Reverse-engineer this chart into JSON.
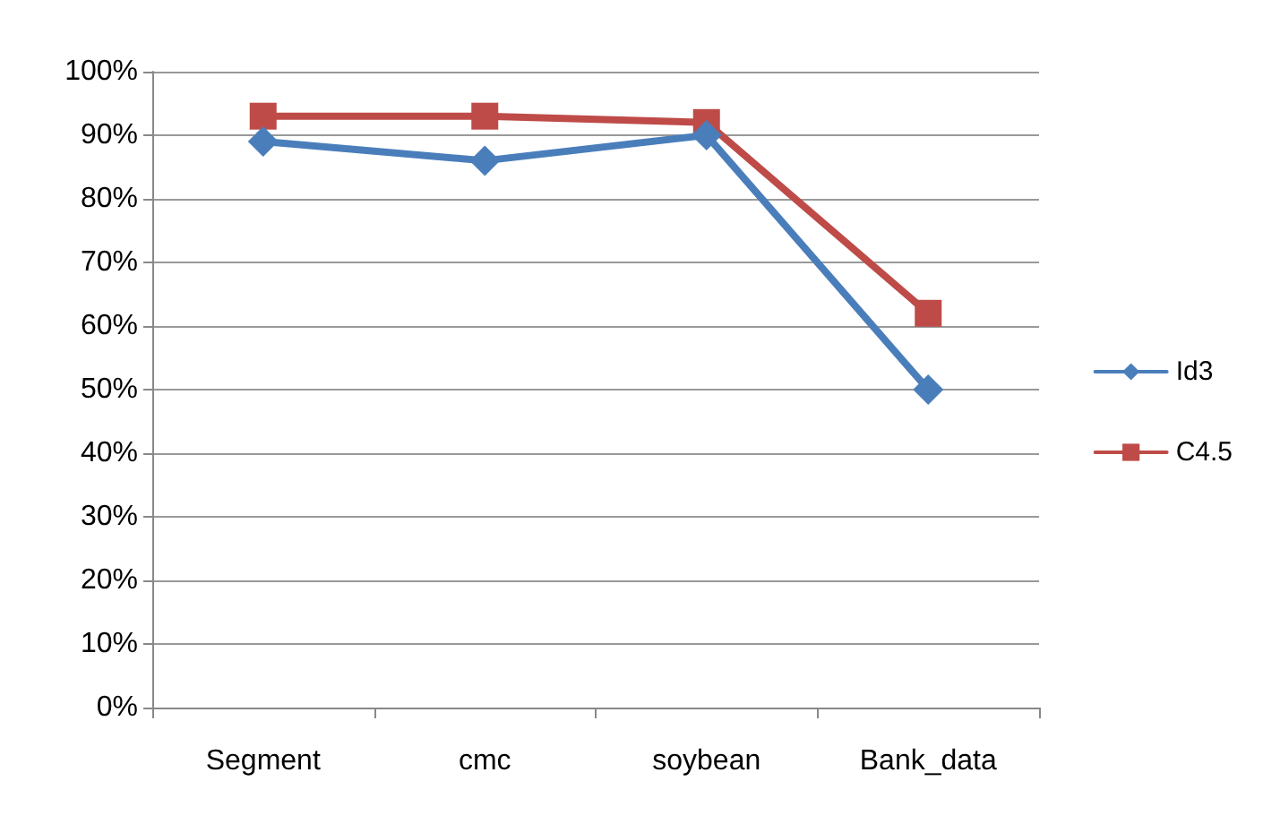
{
  "chart_data": {
    "type": "line",
    "categories": [
      "Segment",
      "cmc",
      "soybean",
      "Bank_data"
    ],
    "series": [
      {
        "name": "Id3",
        "color": "#4a7ebb",
        "marker": "diamond",
        "values": [
          89,
          86,
          90,
          50
        ]
      },
      {
        "name": "C4.5",
        "color": "#be4b48",
        "marker": "square",
        "values": [
          93,
          93,
          92,
          62
        ]
      }
    ],
    "ylim": [
      0,
      100
    ],
    "yticks": [
      {
        "value": 0,
        "label": "0%"
      },
      {
        "value": 10,
        "label": "10%"
      },
      {
        "value": 20,
        "label": "20%"
      },
      {
        "value": 30,
        "label": "30%"
      },
      {
        "value": 40,
        "label": "40%"
      },
      {
        "value": 50,
        "label": "50%"
      },
      {
        "value": 60,
        "label": "60%"
      },
      {
        "value": 70,
        "label": "70%"
      },
      {
        "value": 80,
        "label": "80%"
      },
      {
        "value": 90,
        "label": "90%"
      },
      {
        "value": 100,
        "label": "100%"
      }
    ],
    "grid": "y",
    "legend": "right",
    "line_style": "solid"
  }
}
